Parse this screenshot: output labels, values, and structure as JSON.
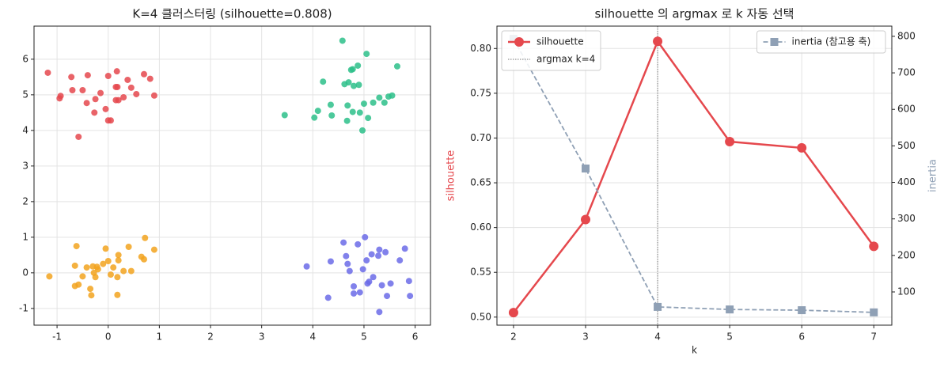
{
  "chart_data": [
    {
      "type": "scatter",
      "title": "K=4 클러스터링 (silhouette=0.808)",
      "xlim": [
        -1.45,
        6.3
      ],
      "ylim": [
        -1.47,
        6.93
      ],
      "xticks": [
        -1,
        0,
        1,
        2,
        3,
        4,
        5,
        6
      ],
      "yticks": [
        -1,
        0,
        1,
        2,
        3,
        4,
        5,
        6
      ],
      "grid": true,
      "series": [
        {
          "color": "#e5484d",
          "x": [
            -1.18,
            -0.95,
            -0.93,
            -0.72,
            -0.7,
            -0.5,
            -0.42,
            -0.4,
            -0.27,
            -0.25,
            -0.15,
            -0.05,
            0.0,
            0.0,
            0.05,
            -0.58,
            0.15,
            0.17,
            0.15,
            0.2,
            0.3,
            0.38,
            0.45,
            0.55,
            0.7,
            0.82,
            0.9,
            0.18
          ],
          "y": [
            5.62,
            4.9,
            4.97,
            5.5,
            5.13,
            5.13,
            4.77,
            5.55,
            4.5,
            4.88,
            5.05,
            4.6,
            5.53,
            4.28,
            4.28,
            3.82,
            5.22,
            5.66,
            4.85,
            4.85,
            4.93,
            5.42,
            5.2,
            5.02,
            5.58,
            5.45,
            4.98,
            5.22
          ]
        },
        {
          "color": "#2dbf8a",
          "x": [
            3.45,
            4.03,
            4.1,
            4.2,
            4.35,
            4.37,
            4.58,
            4.62,
            4.7,
            4.67,
            4.68,
            4.75,
            4.78,
            4.78,
            4.8,
            4.88,
            4.9,
            4.92,
            4.97,
            5.0,
            5.05,
            5.08,
            5.18,
            5.3,
            5.4,
            5.48,
            5.55,
            5.65
          ],
          "y": [
            4.43,
            4.36,
            4.55,
            5.37,
            4.72,
            4.42,
            6.52,
            5.3,
            5.35,
            4.27,
            4.7,
            5.7,
            5.72,
            4.52,
            5.25,
            5.82,
            5.28,
            4.5,
            4.0,
            4.75,
            6.15,
            4.35,
            4.78,
            4.92,
            4.78,
            4.95,
            4.98,
            5.8
          ]
        },
        {
          "color": "#f2a31f",
          "x": [
            -1.15,
            -0.62,
            -0.65,
            -0.65,
            -0.58,
            -0.5,
            -0.42,
            -0.35,
            -0.33,
            -0.3,
            -0.28,
            -0.25,
            -0.22,
            -0.2,
            -0.1,
            -0.05,
            0.0,
            0.05,
            0.1,
            0.18,
            0.18,
            0.2,
            0.2,
            0.3,
            0.4,
            0.45,
            0.65,
            0.7,
            0.72,
            0.9
          ],
          "y": [
            -0.1,
            0.75,
            0.2,
            -0.37,
            -0.33,
            -0.1,
            0.15,
            -0.45,
            -0.63,
            0.18,
            0.0,
            -0.12,
            0.17,
            0.1,
            0.25,
            0.68,
            0.33,
            -0.05,
            0.15,
            -0.12,
            -0.62,
            0.5,
            0.35,
            0.05,
            0.73,
            0.05,
            0.45,
            0.38,
            0.98,
            0.65
          ]
        },
        {
          "color": "#6b6be8",
          "x": [
            3.88,
            4.3,
            4.35,
            4.6,
            4.65,
            4.68,
            4.72,
            4.8,
            4.8,
            4.88,
            4.92,
            4.98,
            5.02,
            5.05,
            5.07,
            5.1,
            5.15,
            5.18,
            5.28,
            5.3,
            5.35,
            5.3,
            5.42,
            5.45,
            5.52,
            5.7,
            5.8,
            5.88,
            5.9
          ],
          "y": [
            0.18,
            -0.7,
            0.32,
            0.85,
            0.47,
            0.25,
            0.05,
            -0.38,
            -0.58,
            0.8,
            -0.55,
            0.1,
            1.0,
            0.35,
            -0.3,
            -0.25,
            0.52,
            -0.12,
            0.48,
            0.65,
            -0.35,
            -1.1,
            0.58,
            -0.65,
            -0.3,
            0.35,
            0.68,
            -0.23,
            -0.65
          ]
        }
      ]
    },
    {
      "type": "line",
      "title": "silhouette 의 argmax 로 k 자동 선택",
      "xlabel": "k",
      "ylabel": "silhouette",
      "y2label": "inertia",
      "x": [
        2,
        3,
        4,
        5,
        6,
        7
      ],
      "xlim": [
        1.77,
        7.25
      ],
      "ylim": [
        0.491,
        0.825
      ],
      "y2lim": [
        9,
        828
      ],
      "xticks": [
        2,
        3,
        4,
        5,
        6,
        7
      ],
      "yticks": [
        {
          "value": 0.5,
          "label": "0.50"
        },
        0.55,
        {
          "value": 0.6,
          "label": "0.60"
        },
        0.65,
        {
          "value": 0.7,
          "label": "0.70"
        },
        0.75,
        {
          "value": 0.8,
          "label": "0.80"
        }
      ],
      "y2ticks": [
        100,
        200,
        300,
        400,
        500,
        600,
        700,
        800
      ],
      "grid": true,
      "legend_loc": "upper left",
      "legend2_loc": "upper right",
      "vline": {
        "x": 4,
        "label": "argmax k=4",
        "color": "#777777"
      },
      "series": [
        {
          "name": "silhouette",
          "color": "#e5484d",
          "marker": "o",
          "linestyle": "solid",
          "values": [
            0.505,
            0.609,
            0.808,
            0.696,
            0.689,
            0.579
          ]
        },
        {
          "name": "inertia (참고용 축)",
          "color": "#8fa0b5",
          "marker": "s",
          "linestyle": "dashed",
          "axis": "y2",
          "values": [
            793,
            438,
            59,
            52,
            50,
            44
          ]
        }
      ]
    }
  ]
}
